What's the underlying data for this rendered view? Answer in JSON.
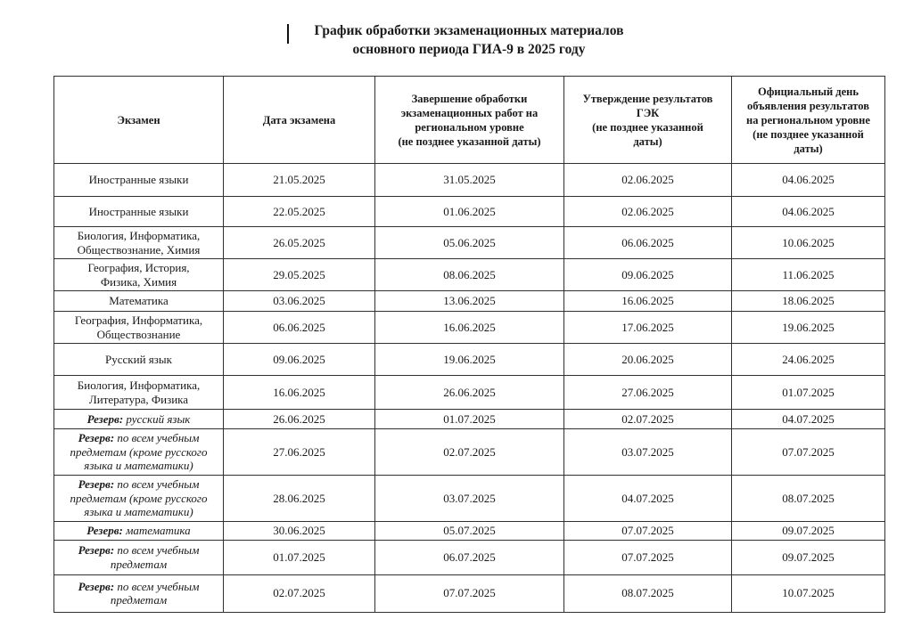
{
  "colors": {
    "text": "#1a1a1a",
    "border": "#303030",
    "background": "#ffffff"
  },
  "title": {
    "text": "График обработки экзаменационных материалов\nосновного периода ГИА-9 в 2025 году"
  },
  "table": {
    "headers": [
      "Экзамен",
      "Дата экзамена",
      "Завершение обработки\nэкзаменационных работ на\nрегиональном уровне\n(не позднее указанной даты)",
      "Утверждение результатов\nГЭК\n(не позднее указанной\nдаты)",
      "Официальный день\nобъявления результатов\nна региональном уровне\n(не позднее указанной\nдаты)"
    ],
    "rows": [
      {
        "prefix": "",
        "exam": "Иностранные языки",
        "dates": [
          "21.05.2025",
          "31.05.2025",
          "02.06.2025",
          "04.06.2025"
        ]
      },
      {
        "prefix": "",
        "exam": "Иностранные языки",
        "dates": [
          "22.05.2025",
          "01.06.2025",
          "02.06.2025",
          "04.06.2025"
        ]
      },
      {
        "prefix": "",
        "exam": "Биология, Информатика,\nОбществознание, Химия",
        "dates": [
          "26.05.2025",
          "05.06.2025",
          "06.06.2025",
          "10.06.2025"
        ]
      },
      {
        "prefix": "",
        "exam": "География, История,\nФизика, Химия",
        "dates": [
          "29.05.2025",
          "08.06.2025",
          "09.06.2025",
          "11.06.2025"
        ]
      },
      {
        "prefix": "",
        "exam": "Математика",
        "dates": [
          "03.06.2025",
          "13.06.2025",
          "16.06.2025",
          "18.06.2025"
        ]
      },
      {
        "prefix": "",
        "exam": "География, Информатика,\nОбществознание",
        "dates": [
          "06.06.2025",
          "16.06.2025",
          "17.06.2025",
          "19.06.2025"
        ]
      },
      {
        "prefix": "",
        "exam": "Русский язык",
        "dates": [
          "09.06.2025",
          "19.06.2025",
          "20.06.2025",
          "24.06.2025"
        ]
      },
      {
        "prefix": "",
        "exam": "Биология, Информатика,\nЛитература, Физика",
        "dates": [
          "16.06.2025",
          "26.06.2025",
          "27.06.2025",
          "01.07.2025"
        ]
      },
      {
        "prefix": "Резерв:",
        "exam": "русский язык",
        "dates": [
          "26.06.2025",
          "01.07.2025",
          "02.07.2025",
          "04.07.2025"
        ]
      },
      {
        "prefix": "Резерв:",
        "exam": "по всем учебным\nпредметам (кроме русского\nязыка и математики)",
        "dates": [
          "27.06.2025",
          "02.07.2025",
          "03.07.2025",
          "07.07.2025"
        ]
      },
      {
        "prefix": "Резерв:",
        "exam": "по всем учебным\nпредметам (кроме русского\nязыка и математики)",
        "dates": [
          "28.06.2025",
          "03.07.2025",
          "04.07.2025",
          "08.07.2025"
        ]
      },
      {
        "prefix": "Резерв:",
        "exam": "математика",
        "dates": [
          "30.06.2025",
          "05.07.2025",
          "07.07.2025",
          "09.07.2025"
        ]
      },
      {
        "prefix": "Резерв:",
        "exam": "по всем учебным\nпредметам",
        "dates": [
          "01.07.2025",
          "06.07.2025",
          "07.07.2025",
          "09.07.2025"
        ]
      },
      {
        "prefix": "Резерв:",
        "exam": "по всем учебным\nпредметам",
        "dates": [
          "02.07.2025",
          "07.07.2025",
          "08.07.2025",
          "10.07.2025"
        ]
      }
    ]
  }
}
